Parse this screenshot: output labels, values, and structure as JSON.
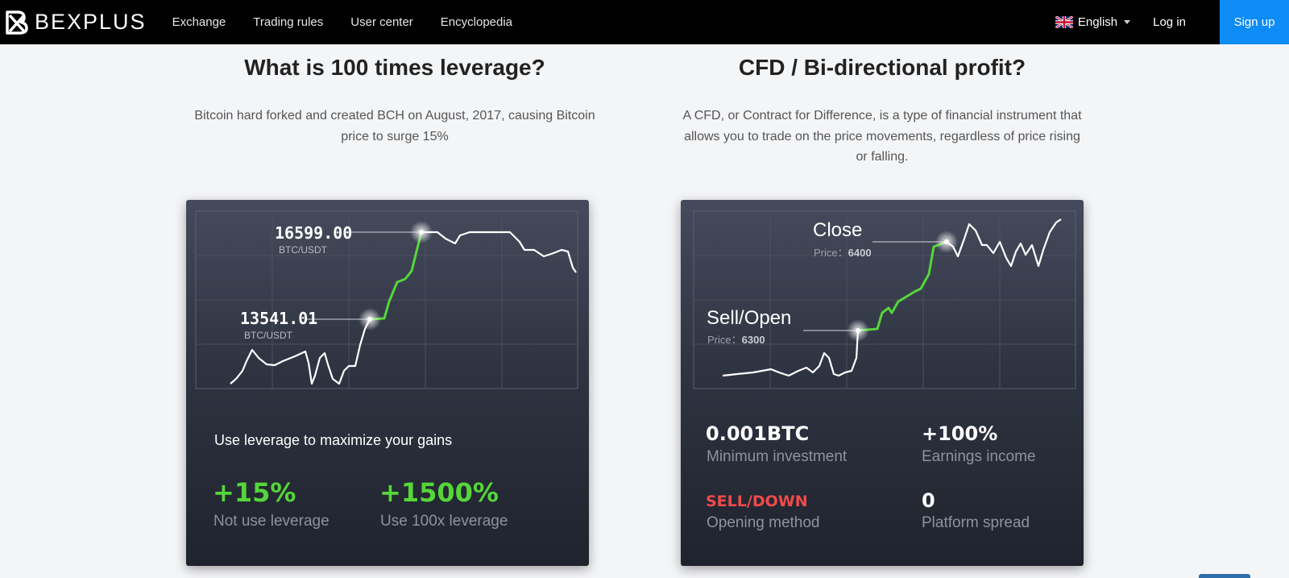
{
  "nav": {
    "brand": "BEXPLUS",
    "links": [
      "Exchange",
      "Trading rules",
      "User center",
      "Encyclopedia"
    ],
    "language": "English",
    "login": "Log in",
    "signup": "Sign up"
  },
  "left": {
    "title": "What is 100 times leverage?",
    "description": "Bitcoin hard forked and created BCH on August, 2017, causing Bitcoin price to surge 15%",
    "chart": {
      "high_price": "16599.00",
      "high_pair": "BTC/USDT",
      "low_price": "13541.01",
      "low_pair": "BTC/USDT"
    },
    "tagline": "Use leverage to maximize your gains",
    "stats": [
      {
        "value": "+15%",
        "label": "Not use leverage"
      },
      {
        "value": "+1500%",
        "label": "Use 100x leverage"
      }
    ]
  },
  "right": {
    "title": "CFD / Bi-directional profit?",
    "description": "A CFD, or Contract for Difference, is a type of financial instrument that allows you to trade on the price movements, regardless of price rising or falling.",
    "chart": {
      "close_label": "Close",
      "close_price_label": "Price：",
      "close_price": "6400",
      "open_label": "Sell/Open",
      "open_price_label": "Price：",
      "open_price": "6300"
    },
    "stats": [
      {
        "value": "0.001BTC",
        "label": "Minimum investment"
      },
      {
        "value": "+100%",
        "label": "Earnings income"
      },
      {
        "value": "SELL/DOWN",
        "label": "Opening method"
      },
      {
        "value": "0",
        "label": "Platform spread"
      }
    ]
  },
  "colors": {
    "accent_green": "#55d63a",
    "signup_blue": "#0d8cf5",
    "sell_red": "#ef4a4a"
  }
}
